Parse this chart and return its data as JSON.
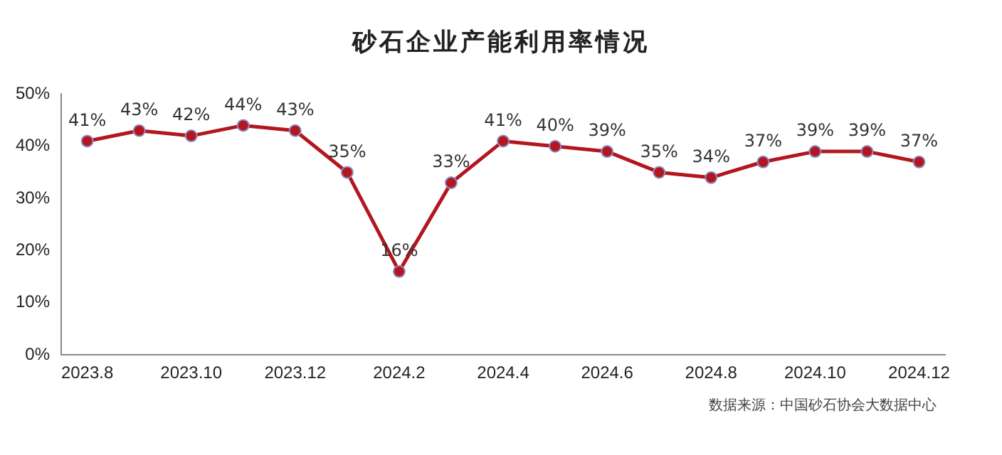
{
  "chart_data": {
    "type": "line",
    "title": "砂石企业产能利用率情况",
    "categories": [
      "2023.8",
      null,
      "2023.10",
      null,
      "2023.12",
      null,
      "2024.2",
      null,
      "2024.4",
      null,
      "2024.6",
      null,
      "2024.8",
      null,
      "2024.10",
      null,
      "2024.12"
    ],
    "series": [
      {
        "color": "#b3161e",
        "values": [
          41,
          43,
          42,
          44,
          43,
          35,
          16,
          33,
          41,
          40,
          39,
          35,
          34,
          37,
          39,
          39,
          37
        ],
        "value_labels": [
          "41%",
          "43%",
          "42%",
          "44%",
          "43%",
          "35%",
          "16%",
          "33%",
          "41%",
          "40%",
          "39%",
          "35%",
          "34%",
          "37%",
          "39%",
          "39%",
          "37%"
        ]
      }
    ],
    "ylim": [
      0,
      50
    ],
    "yticks": [
      {
        "value": 0,
        "label": "0%"
      },
      {
        "value": 10,
        "label": "10%"
      },
      {
        "value": 20,
        "label": "20%"
      },
      {
        "value": 30,
        "label": "30%"
      },
      {
        "value": 40,
        "label": "40%"
      },
      {
        "value": 50,
        "label": "50%"
      }
    ],
    "grid": false,
    "legend": false,
    "marker": "circle",
    "line_style": "solid",
    "annotations": [
      "数据来源：中国砂石协会大数据中心"
    ]
  }
}
